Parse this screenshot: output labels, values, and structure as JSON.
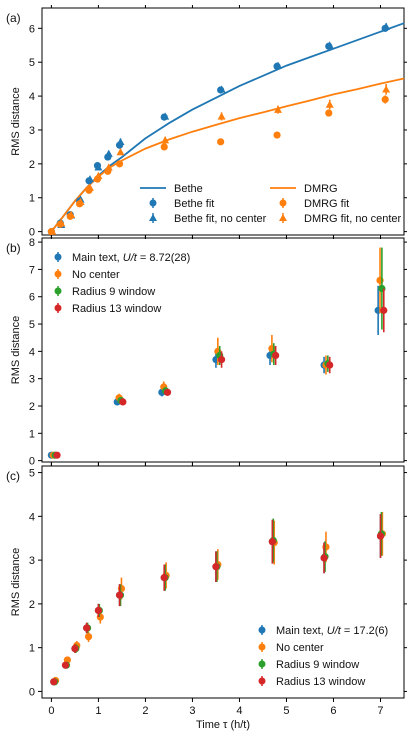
{
  "colors": {
    "blue": "#1f77b4",
    "orange": "#ff7f0e",
    "green": "#2ca02c",
    "red": "#d62728"
  },
  "chart_data": [
    {
      "panel": "(a)",
      "type": "scatter",
      "ylabel": "RMS distance",
      "xlim": [
        -0.2,
        7.5
      ],
      "ylim": [
        -0.1,
        6.6
      ],
      "yticks": [
        "0",
        "1",
        "2",
        "3",
        "4",
        "5",
        "6"
      ],
      "xtick_values": [
        0,
        1,
        2,
        3,
        4,
        5,
        6,
        7
      ],
      "ytick_values": [
        0,
        1,
        2,
        3,
        4,
        5,
        6
      ],
      "legend_position": "bottom-right",
      "lines": [
        {
          "name": "Bethe",
          "color": "blue",
          "x": [
            0,
            0.25,
            0.5,
            0.75,
            1.0,
            1.25,
            1.5,
            2.0,
            2.5,
            3.0,
            3.5,
            4.0,
            4.5,
            5.0,
            5.5,
            6.0,
            6.5,
            7.0,
            7.5
          ],
          "y": [
            0,
            0.45,
            0.9,
            1.3,
            1.65,
            1.95,
            2.2,
            2.75,
            3.2,
            3.6,
            3.95,
            4.3,
            4.6,
            4.9,
            5.15,
            5.4,
            5.65,
            5.9,
            6.15
          ]
        },
        {
          "name": "DMRG",
          "color": "orange",
          "x": [
            0,
            0.25,
            0.5,
            0.75,
            1.0,
            1.25,
            1.5,
            2.0,
            2.5,
            3.0,
            3.5,
            4.0,
            4.5,
            5.0,
            5.5,
            6.0,
            6.5,
            7.0,
            7.5
          ],
          "y": [
            0,
            0.45,
            0.9,
            1.3,
            1.62,
            1.9,
            2.1,
            2.45,
            2.72,
            2.95,
            3.15,
            3.35,
            3.52,
            3.7,
            3.87,
            4.05,
            4.2,
            4.37,
            4.52
          ]
        }
      ],
      "series": [
        {
          "name": "Bethe fit",
          "color": "blue",
          "marker": "circle",
          "x": [
            0.0,
            0.19,
            0.4,
            0.6,
            0.8,
            0.98,
            1.2,
            1.45,
            2.4,
            3.6,
            4.8,
            5.9,
            7.1
          ],
          "y": [
            0.0,
            0.25,
            0.5,
            0.9,
            1.5,
            1.95,
            2.2,
            2.55,
            3.38,
            4.18,
            4.88,
            5.47,
            6.0
          ],
          "err": [
            0.05,
            0.05,
            0.05,
            0.06,
            0.06,
            0.06,
            0.07,
            0.07,
            0.08,
            0.08,
            0.08,
            0.08,
            0.1
          ]
        },
        {
          "name": "Bethe fit, no center",
          "color": "blue",
          "marker": "triangle",
          "x": [
            0.02,
            0.21,
            0.42,
            0.62,
            0.82,
            1.0,
            1.22,
            1.47,
            2.42,
            3.62,
            4.82,
            5.92,
            7.12
          ],
          "y": [
            0.0,
            0.2,
            0.48,
            0.95,
            1.55,
            1.9,
            2.3,
            2.65,
            3.4,
            4.2,
            4.9,
            5.5,
            6.05
          ],
          "err": [
            0.05,
            0.05,
            0.05,
            0.06,
            0.06,
            0.06,
            0.07,
            0.1,
            0.08,
            0.08,
            0.08,
            0.08,
            0.1
          ]
        },
        {
          "name": "DMRG fit",
          "color": "orange",
          "marker": "circle",
          "x": [
            0.0,
            0.19,
            0.4,
            0.6,
            0.8,
            0.98,
            1.2,
            1.45,
            2.4,
            3.6,
            4.8,
            5.9,
            7.1
          ],
          "y": [
            0.0,
            0.22,
            0.45,
            0.82,
            1.22,
            1.55,
            1.78,
            2.0,
            2.5,
            2.65,
            2.85,
            3.5,
            3.9
          ],
          "err": [
            0.05,
            0.05,
            0.05,
            0.06,
            0.06,
            0.06,
            0.07,
            0.07,
            0.08,
            0.08,
            0.08,
            0.1,
            0.12
          ]
        },
        {
          "name": "DMRG fit, no center",
          "color": "orange",
          "marker": "triangle",
          "x": [
            0.02,
            0.21,
            0.42,
            0.62,
            0.82,
            1.0,
            1.22,
            1.47,
            2.42,
            3.62,
            4.82,
            5.92,
            7.12
          ],
          "y": [
            0.0,
            0.25,
            0.5,
            0.88,
            1.3,
            1.65,
            1.9,
            2.35,
            2.7,
            3.4,
            3.6,
            3.75,
            4.2
          ],
          "err": [
            0.05,
            0.05,
            0.05,
            0.06,
            0.06,
            0.06,
            0.07,
            0.08,
            0.1,
            0.12,
            0.12,
            0.14,
            0.16
          ]
        }
      ]
    },
    {
      "panel": "(b)",
      "type": "scatter",
      "ylabel": "RMS distance",
      "xlim": [
        -0.2,
        7.5
      ],
      "ylim": [
        -0.05,
        8.15
      ],
      "yticks": [
        "0",
        "1",
        "2",
        "3",
        "4",
        "5",
        "6",
        "7",
        "8"
      ],
      "xtick_values": [
        0,
        1,
        2,
        3,
        4,
        5,
        6,
        7
      ],
      "ytick_values": [
        0,
        1,
        2,
        3,
        4,
        5,
        6,
        7,
        8
      ],
      "legend_position": "top-left",
      "series": [
        {
          "name": "Main text, U/t = 8.72(28)",
          "color": "blue",
          "x": [
            0.0,
            1.4,
            2.35,
            3.5,
            4.65,
            5.8,
            6.95
          ],
          "y": [
            0.2,
            2.15,
            2.5,
            3.7,
            3.85,
            3.5,
            5.5
          ],
          "err": [
            0.05,
            0.12,
            0.15,
            0.3,
            0.35,
            0.3,
            0.9
          ]
        },
        {
          "name": "No center",
          "color": "orange",
          "x": [
            0.04,
            1.44,
            2.39,
            3.54,
            4.69,
            5.84,
            6.99
          ],
          "y": [
            0.2,
            2.3,
            2.7,
            4.0,
            4.1,
            3.5,
            6.6
          ],
          "err": [
            0.05,
            0.15,
            0.2,
            0.5,
            0.5,
            0.35,
            1.2
          ]
        },
        {
          "name": "Radius 9 window",
          "color": "green",
          "x": [
            0.08,
            1.48,
            2.43,
            3.58,
            4.73,
            5.88,
            7.03
          ],
          "y": [
            0.2,
            2.2,
            2.55,
            3.85,
            3.9,
            3.55,
            6.3
          ],
          "err": [
            0.05,
            0.12,
            0.15,
            0.35,
            0.4,
            0.3,
            1.5
          ]
        },
        {
          "name": "Radius 13 window",
          "color": "red",
          "x": [
            0.12,
            1.52,
            2.47,
            3.62,
            4.77,
            5.92,
            7.07
          ],
          "y": [
            0.2,
            2.15,
            2.5,
            3.7,
            3.85,
            3.5,
            5.5
          ],
          "err": [
            0.05,
            0.1,
            0.12,
            0.3,
            0.35,
            0.3,
            0.8
          ]
        }
      ],
      "legend_math": [
        {
          "text": "Main text, ",
          "style": "normal"
        },
        {
          "text": "U/t",
          "style": "italic"
        },
        {
          "text": " = 8.72(28)",
          "style": "normal"
        }
      ]
    },
    {
      "panel": "(c)",
      "type": "scatter",
      "ylabel": "RMS distance",
      "xlabel": "Time τ (h/t)",
      "xticks": [
        "0",
        "1",
        "2",
        "3",
        "4",
        "5",
        "6",
        "7"
      ],
      "xlim": [
        -0.2,
        7.5
      ],
      "ylim": [
        -0.15,
        5.15
      ],
      "yticks": [
        "0",
        "1",
        "2",
        "3",
        "4",
        "5"
      ],
      "xtick_values": [
        0,
        1,
        2,
        3,
        4,
        5,
        6,
        7
      ],
      "ytick_values": [
        0,
        1,
        2,
        3,
        4,
        5
      ],
      "legend_position": "bottom-right",
      "series": [
        {
          "name": "Main text, U/t = 17.2(6)",
          "color": "blue",
          "x": [
            0.05,
            0.3,
            0.5,
            0.75,
            1.0,
            1.45,
            2.4,
            3.5,
            4.7,
            5.8,
            7.0
          ],
          "y": [
            0.22,
            0.6,
            0.98,
            1.45,
            1.85,
            2.2,
            2.6,
            2.85,
            3.42,
            3.05,
            3.55
          ],
          "err": [
            0.06,
            0.06,
            0.1,
            0.12,
            0.15,
            0.25,
            0.3,
            0.35,
            0.5,
            0.35,
            0.5
          ]
        },
        {
          "name": "No center",
          "color": "orange",
          "x": [
            0.09,
            0.34,
            0.54,
            0.79,
            1.04,
            1.49,
            2.44,
            3.54,
            4.74,
            5.84,
            7.04
          ],
          "y": [
            0.25,
            0.72,
            1.05,
            1.25,
            1.7,
            2.35,
            2.65,
            2.9,
            3.4,
            3.3,
            3.6
          ],
          "err": [
            0.06,
            0.06,
            0.1,
            0.12,
            0.15,
            0.25,
            0.3,
            0.35,
            0.5,
            0.35,
            0.5
          ]
        },
        {
          "name": "Radius 9 window",
          "color": "green",
          "x": [
            0.07,
            0.32,
            0.52,
            0.77,
            1.02,
            1.47,
            2.42,
            3.52,
            4.72,
            5.82,
            7.02
          ],
          "y": [
            0.22,
            0.6,
            0.98,
            1.45,
            1.85,
            2.2,
            2.6,
            2.85,
            3.45,
            3.08,
            3.6
          ],
          "err": [
            0.06,
            0.06,
            0.1,
            0.12,
            0.15,
            0.25,
            0.3,
            0.35,
            0.5,
            0.35,
            0.5
          ]
        },
        {
          "name": "Radius 13 window",
          "color": "red",
          "x": [
            0.05,
            0.3,
            0.5,
            0.75,
            1.0,
            1.45,
            2.4,
            3.5,
            4.7,
            5.8,
            7.0
          ],
          "y": [
            0.22,
            0.6,
            0.98,
            1.45,
            1.85,
            2.2,
            2.6,
            2.85,
            3.42,
            3.05,
            3.55
          ],
          "err": [
            0.06,
            0.06,
            0.1,
            0.12,
            0.15,
            0.25,
            0.3,
            0.35,
            0.5,
            0.35,
            0.5
          ]
        }
      ],
      "legend_math": [
        {
          "text": "Main text, ",
          "style": "normal"
        },
        {
          "text": "U/t",
          "style": "italic"
        },
        {
          "text": " = 17.2(6)",
          "style": "normal"
        }
      ]
    }
  ]
}
